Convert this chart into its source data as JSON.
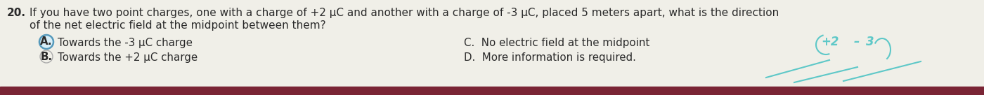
{
  "question_number": "20.",
  "question_line1": "If you have two point charges, one with a charge of +2 μC and another with a charge of -3 μC, placed 5 meters apart, what is the direction",
  "question_line2": "of the net electric field at the midpoint between them?",
  "option_A_label": "A.",
  "option_A": "Towards the -3 μC charge",
  "option_B_label": "B.",
  "option_B": "Towards the +2 μC charge",
  "option_C": "C.  No electric field at the midpoint",
  "option_D": "D.  More information is required.",
  "bg_color": "#f0efe8",
  "text_color": "#2a2a2a",
  "circle_fill": "#d8eef8",
  "circle_edge": "#5599bb",
  "border_color": "#7a2535",
  "handwriting_color": "#5ec8c8",
  "font_size_q": 11.0,
  "font_size_opt": 10.8
}
